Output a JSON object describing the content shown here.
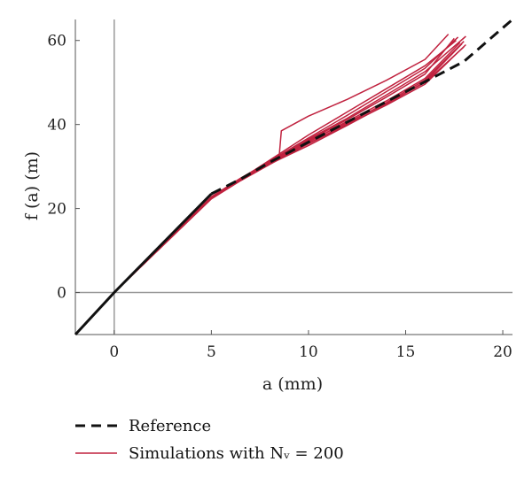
{
  "chart_data": {
    "type": "line",
    "xlim": [
      -2,
      20.5
    ],
    "ylim": [
      -10,
      65
    ],
    "x_ticks": [
      0,
      5,
      10,
      15,
      20
    ],
    "y_ticks": [
      0,
      20,
      40,
      60
    ],
    "x_tick_labels": [
      "0",
      "5",
      "10",
      "15",
      "20"
    ],
    "y_tick_labels": [
      "0",
      "20",
      "40",
      "60"
    ],
    "xlabel": "a (mm)",
    "ylabel": "f (a) (m)",
    "zero_lines": true,
    "legend_placement": "bottom",
    "legend": [
      {
        "label": "Reference",
        "style": "dashed"
      },
      {
        "label": "Simulations with Nᵥ = 200",
        "style": "solid"
      }
    ],
    "colors": {
      "reference": "#111111",
      "simulations": "#c0223f"
    },
    "reference": {
      "name": "Reference",
      "x": [
        -2,
        0,
        5,
        6.5,
        8,
        10,
        12,
        14,
        16,
        18,
        20.5
      ],
      "y": [
        -10,
        0,
        23.5,
        27,
        31,
        35.8,
        40.6,
        45.4,
        50.2,
        55,
        65
      ]
    },
    "series": [
      {
        "name": "Simulations with Nᵥ = 200",
        "x": [
          0,
          5,
          6.5,
          8,
          10,
          12,
          14,
          16,
          17.8
        ],
        "y": [
          0,
          22.5,
          26.8,
          30.8,
          35.8,
          40.8,
          45.6,
          51,
          59.5
        ]
      },
      {
        "x": [
          0,
          5,
          6.5,
          8,
          10,
          12,
          14,
          16,
          17.5
        ],
        "y": [
          0,
          22.8,
          27.2,
          31.2,
          36.2,
          41.2,
          46.5,
          52,
          60.5
        ]
      },
      {
        "x": [
          0,
          5,
          6.5,
          8,
          10,
          12,
          14,
          16,
          18
        ],
        "y": [
          0,
          22.3,
          26.6,
          30.5,
          35.5,
          40.2,
          45.2,
          50.6,
          59.8
        ]
      },
      {
        "x": [
          0,
          5,
          6.5,
          8,
          10,
          12,
          14,
          16,
          18.1
        ],
        "y": [
          0,
          22.6,
          27,
          31,
          36.5,
          41.5,
          47,
          52.6,
          61
        ]
      },
      {
        "x": [
          0,
          5,
          6.5,
          8,
          10,
          12,
          14,
          16,
          17.9
        ],
        "y": [
          0,
          22.4,
          26.7,
          30.6,
          35,
          39.8,
          44.8,
          50.2,
          59.2
        ]
      },
      {
        "x": [
          0,
          5,
          6.5,
          8,
          8.5,
          8.6,
          10,
          12,
          14,
          16,
          17.2
        ],
        "y": [
          0,
          22.7,
          27.1,
          31,
          33,
          38.5,
          42,
          46,
          50.5,
          55.5,
          61.5
        ]
      },
      {
        "x": [
          0,
          5,
          6.5,
          8,
          10,
          12,
          14,
          16,
          17.6
        ],
        "y": [
          0,
          22.5,
          27,
          31.5,
          37.5,
          43,
          48.5,
          54,
          60
        ]
      },
      {
        "x": [
          0,
          5,
          6.5,
          8,
          10,
          12,
          14,
          16,
          18
        ],
        "y": [
          0,
          22.6,
          26.9,
          30.9,
          36,
          40.5,
          45,
          50,
          58.5
        ]
      },
      {
        "x": [
          0,
          5,
          6.5,
          8,
          10,
          12,
          14,
          16,
          17.7
        ],
        "y": [
          0,
          22.5,
          27,
          31.3,
          36.8,
          42.2,
          47.8,
          53.4,
          60.8
        ]
      },
      {
        "x": [
          0,
          5,
          6.5,
          8,
          10,
          12,
          14,
          16,
          18.1
        ],
        "y": [
          0,
          22.4,
          26.8,
          30.7,
          35.4,
          40,
          44.6,
          49.6,
          59
        ]
      }
    ]
  }
}
